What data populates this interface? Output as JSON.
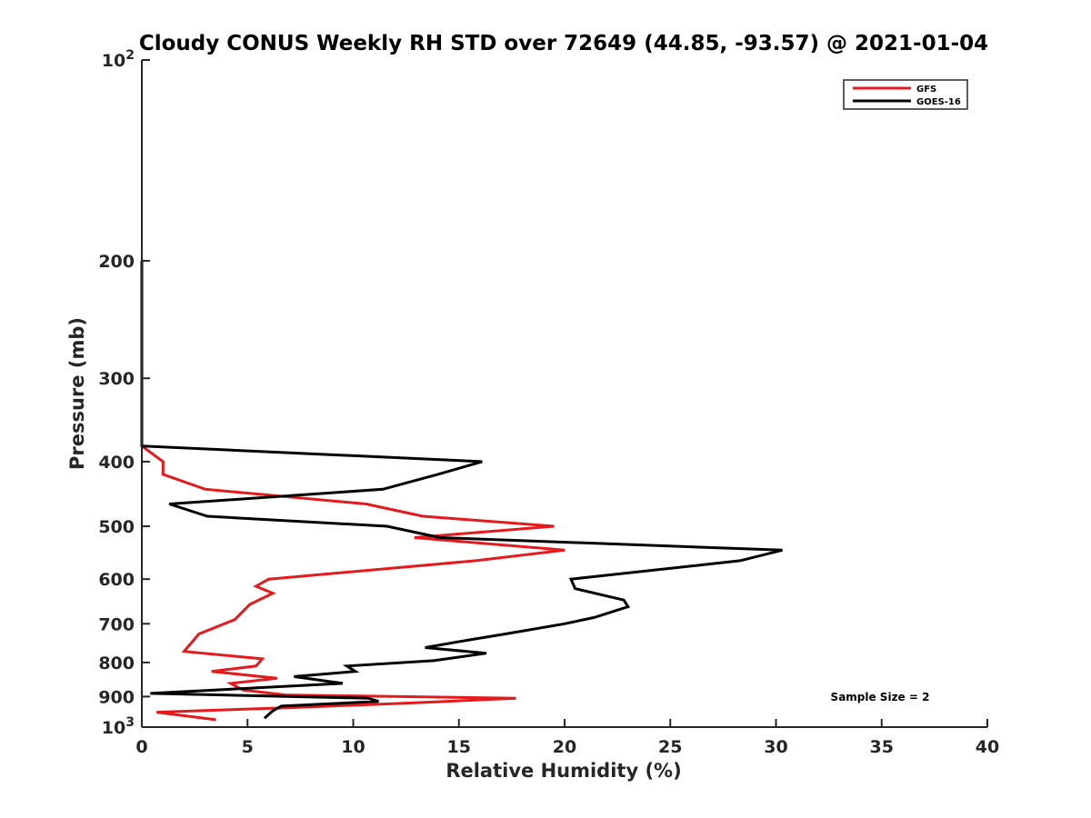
{
  "chart_data": {
    "type": "line",
    "title": "Cloudy CONUS Weekly RH STD over 72649 (44.85, -93.57) @ 2021-01-04",
    "xlabel": "Relative Humidity (%)",
    "ylabel": "Pressure (mb)",
    "xlim": [
      0,
      40
    ],
    "ylim": [
      100,
      1000
    ],
    "y_scale": "log",
    "y_reversed": true,
    "grid": false,
    "legend_position": "top-right",
    "x_ticks": [
      0,
      5,
      10,
      15,
      20,
      25,
      30,
      35,
      40
    ],
    "x_tick_labels": [
      "0",
      "5",
      "10",
      "15",
      "20",
      "25",
      "30",
      "35",
      "40"
    ],
    "y_ticks": [
      100,
      200,
      300,
      400,
      500,
      600,
      700,
      800,
      900,
      1000
    ],
    "y_tick_labels": [
      "10²",
      "200",
      "300",
      "400",
      "500",
      "600",
      "700",
      "800",
      "900",
      "10³"
    ],
    "series": [
      {
        "name": "GFS",
        "color": "#e41a1c",
        "points": [
          [
            0,
            200
          ],
          [
            0,
            379
          ],
          [
            1.0,
            400
          ],
          [
            1.0,
            418
          ],
          [
            3.0,
            440
          ],
          [
            10.6,
            463
          ],
          [
            13.3,
            483
          ],
          [
            19.5,
            500
          ],
          [
            12.9,
            520
          ],
          [
            20.0,
            543
          ],
          [
            15.8,
            563
          ],
          [
            6.0,
            600
          ],
          [
            5.4,
            615
          ],
          [
            6.2,
            630
          ],
          [
            5.1,
            655
          ],
          [
            4.4,
            690
          ],
          [
            2.7,
            725
          ],
          [
            2.0,
            770
          ],
          [
            5.7,
            790
          ],
          [
            5.4,
            810
          ],
          [
            3.3,
            825
          ],
          [
            6.4,
            845
          ],
          [
            4.2,
            860
          ],
          [
            4.8,
            880
          ],
          [
            6.8,
            895
          ],
          [
            17.7,
            905
          ],
          [
            12.8,
            920
          ],
          [
            7.0,
            935
          ],
          [
            0.7,
            950
          ],
          [
            3.5,
            975
          ]
        ]
      },
      {
        "name": "GOES-16",
        "color": "#000000",
        "points": [
          [
            0,
            200
          ],
          [
            0,
            379
          ],
          [
            16.1,
            400
          ],
          [
            14.0,
            418
          ],
          [
            11.4,
            440
          ],
          [
            1.3,
            463
          ],
          [
            3.1,
            483
          ],
          [
            11.6,
            500
          ],
          [
            14.1,
            520
          ],
          [
            30.3,
            543
          ],
          [
            28.3,
            563
          ],
          [
            20.3,
            600
          ],
          [
            20.5,
            620
          ],
          [
            22.8,
            645
          ],
          [
            23.0,
            660
          ],
          [
            21.4,
            685
          ],
          [
            20.0,
            700
          ],
          [
            17.2,
            725
          ],
          [
            15.5,
            740
          ],
          [
            13.4,
            760
          ],
          [
            16.3,
            775
          ],
          [
            13.8,
            795
          ],
          [
            9.7,
            810
          ],
          [
            10.1,
            825
          ],
          [
            7.2,
            840
          ],
          [
            9.5,
            860
          ],
          [
            0.4,
            890
          ],
          [
            10.7,
            905
          ],
          [
            11.2,
            915
          ],
          [
            6.6,
            930
          ],
          [
            6.2,
            945
          ],
          [
            5.8,
            970
          ]
        ]
      }
    ],
    "annotation": "Sample Size = 2"
  }
}
